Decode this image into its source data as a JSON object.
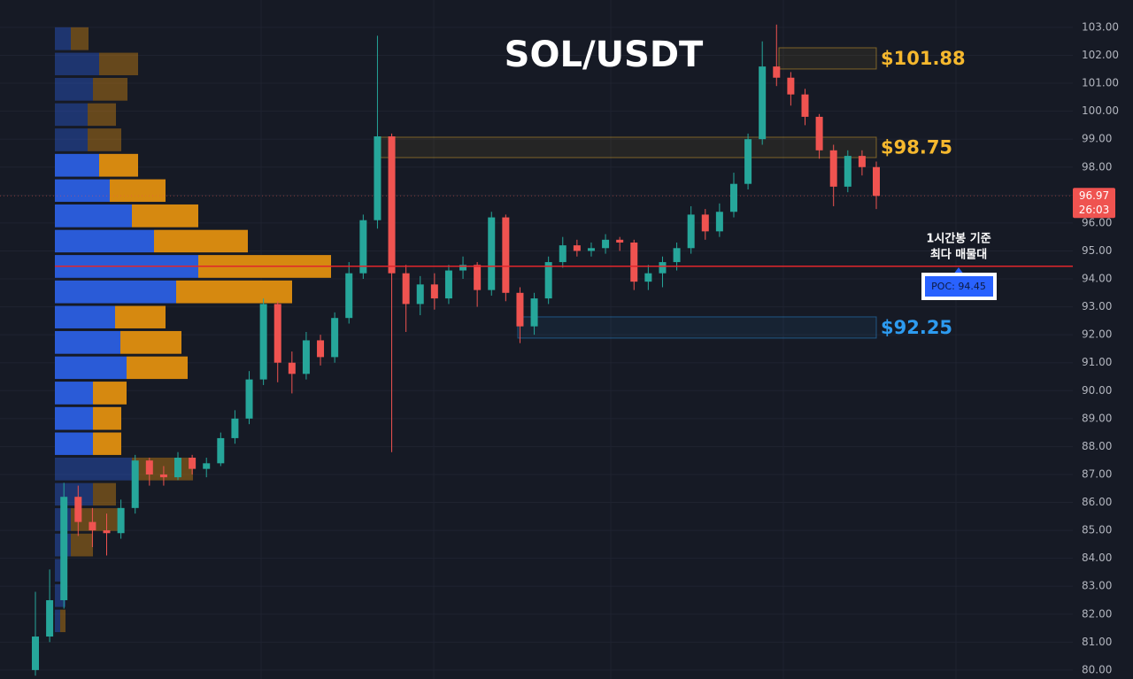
{
  "chart_data": {
    "type": "candlestick",
    "title": "SOL/USDT",
    "up_color": "#26a69a",
    "down_color": "#ef5350",
    "ylim": [
      79.68,
      103.98
    ],
    "yticks": [
      {
        "value": 80,
        "label": "80.00"
      },
      {
        "value": 81,
        "label": "81.00"
      },
      {
        "value": 82,
        "label": "82.00"
      },
      {
        "value": 83,
        "label": "83.00"
      },
      {
        "value": 84,
        "label": "84.00"
      },
      {
        "value": 85,
        "label": "85.00"
      },
      {
        "value": 86,
        "label": "86.00"
      },
      {
        "value": 87,
        "label": "87.00"
      },
      {
        "value": 88,
        "label": "88.00"
      },
      {
        "value": 89,
        "label": "89.00"
      },
      {
        "value": 90,
        "label": "90.00"
      },
      {
        "value": 91,
        "label": "91.00"
      },
      {
        "value": 92,
        "label": "92.00"
      },
      {
        "value": 93,
        "label": "93.00"
      },
      {
        "value": 94,
        "label": "94.00"
      },
      {
        "value": 95,
        "label": "95.00"
      },
      {
        "value": 96,
        "label": "96.00"
      },
      {
        "value": 97,
        "label": "97.00"
      },
      {
        "value": 98,
        "label": "98.00"
      },
      {
        "value": 99,
        "label": "99.00"
      },
      {
        "value": 100,
        "label": "100.00"
      },
      {
        "value": 101,
        "label": "101.00"
      },
      {
        "value": 102,
        "label": "102.00"
      },
      {
        "value": 103,
        "label": "103.00"
      }
    ],
    "grid": true,
    "open": [
      80.0,
      81.2,
      82.5,
      86.2,
      85.3,
      85.0,
      84.9,
      85.8,
      87.5,
      87.0,
      86.9,
      87.6,
      87.2,
      87.4,
      88.3,
      89.0,
      90.4,
      93.1,
      91.0,
      90.6,
      91.8,
      91.2,
      92.6,
      94.2,
      96.1,
      99.1,
      94.2,
      93.1,
      93.8,
      93.3,
      94.3,
      94.5,
      93.6,
      96.2,
      93.5,
      92.3,
      93.3,
      94.6,
      95.2,
      95.0,
      95.1,
      95.4,
      95.3,
      93.9,
      94.2,
      94.6,
      95.1,
      96.3,
      95.7,
      96.4,
      97.4,
      99.0,
      101.6,
      101.2,
      100.6,
      99.8,
      98.6,
      97.3,
      98.4,
      98.0
    ],
    "high": [
      82.8,
      83.6,
      86.7,
      86.6,
      85.8,
      85.6,
      86.1,
      87.7,
      87.6,
      87.3,
      87.8,
      87.7,
      87.6,
      88.5,
      89.3,
      90.7,
      93.3,
      93.2,
      91.4,
      92.1,
      92.0,
      92.8,
      94.6,
      96.3,
      102.7,
      99.2,
      94.5,
      94.1,
      94.2,
      94.5,
      94.8,
      94.6,
      96.4,
      96.3,
      93.7,
      93.5,
      94.8,
      95.5,
      95.4,
      95.3,
      95.6,
      95.5,
      95.4,
      94.5,
      94.8,
      95.3,
      96.6,
      96.5,
      96.7,
      97.8,
      99.2,
      102.5,
      103.1,
      101.4,
      100.8,
      99.9,
      98.8,
      98.6,
      98.6,
      98.2
    ],
    "low": [
      79.8,
      81.0,
      82.2,
      84.8,
      84.4,
      84.1,
      84.7,
      85.6,
      86.6,
      86.6,
      86.8,
      87.0,
      86.9,
      87.3,
      88.1,
      88.8,
      90.2,
      90.3,
      89.9,
      90.4,
      90.9,
      91.0,
      92.4,
      94.0,
      95.8,
      87.8,
      92.1,
      92.7,
      92.9,
      93.1,
      94.0,
      93.0,
      93.4,
      93.2,
      91.7,
      92.0,
      93.1,
      94.4,
      94.8,
      94.8,
      94.9,
      95.0,
      93.6,
      93.6,
      93.7,
      94.3,
      94.9,
      95.4,
      95.5,
      96.2,
      97.2,
      98.8,
      100.9,
      100.2,
      99.5,
      98.3,
      96.6,
      97.1,
      97.7,
      96.5
    ],
    "close": [
      81.2,
      82.5,
      86.2,
      85.3,
      85.0,
      84.9,
      85.8,
      87.5,
      87.0,
      86.9,
      87.6,
      87.2,
      87.4,
      88.3,
      89.0,
      90.4,
      93.1,
      91.0,
      90.6,
      91.8,
      91.2,
      92.6,
      94.2,
      96.1,
      99.1,
      94.2,
      93.1,
      93.8,
      93.3,
      94.3,
      94.5,
      93.6,
      96.2,
      93.5,
      92.3,
      93.3,
      94.6,
      95.2,
      95.0,
      95.1,
      95.4,
      95.3,
      93.9,
      94.2,
      94.6,
      95.1,
      96.3,
      95.7,
      96.4,
      97.4,
      99.0,
      101.6,
      101.2,
      100.6,
      99.8,
      98.6,
      97.3,
      98.4,
      98.0,
      96.97
    ],
    "profile": {
      "bins": [
        103.05,
        102.14,
        101.24,
        100.33,
        99.43,
        98.52,
        97.61,
        96.71,
        95.8,
        94.9,
        93.99,
        93.08,
        92.18,
        91.27,
        90.37,
        89.46,
        88.55,
        87.65,
        86.74,
        85.84,
        84.93,
        84.02,
        83.12,
        82.21,
        81.31
      ],
      "buy": [
        18,
        50,
        43,
        37,
        37,
        50,
        62,
        87,
        112,
        162,
        137,
        68,
        74,
        81,
        43,
        43,
        43,
        87,
        43,
        18,
        18,
        12,
        12,
        6
      ],
      "sell": [
        20,
        44,
        39,
        32,
        38,
        44,
        63,
        75,
        106,
        150,
        131,
        57,
        69,
        69,
        38,
        32,
        32,
        69,
        26,
        57,
        25,
        0,
        0,
        6
      ],
      "buy_color": "#2a5bd7",
      "sell_color": "#d68910",
      "value_area": [
        87.65,
        98.52
      ]
    },
    "zones": [
      {
        "high": 102.27,
        "low": 101.51,
        "label": "$101.88",
        "color": "#f5b82e"
      },
      {
        "high": 99.07,
        "low": 98.34,
        "label": "$98.75",
        "color": "#f5b82e"
      },
      {
        "high": 92.64,
        "low": 91.88,
        "label": "$92.25",
        "color": "#2d9bf0"
      }
    ],
    "poc": {
      "value": 94.45,
      "label": "POC: 94.45",
      "color": "#e0262b"
    },
    "annotation": [
      "1시간봉 기준",
      "최다 매물대"
    ],
    "last_price": 96.97,
    "countdown": "26:03"
  }
}
